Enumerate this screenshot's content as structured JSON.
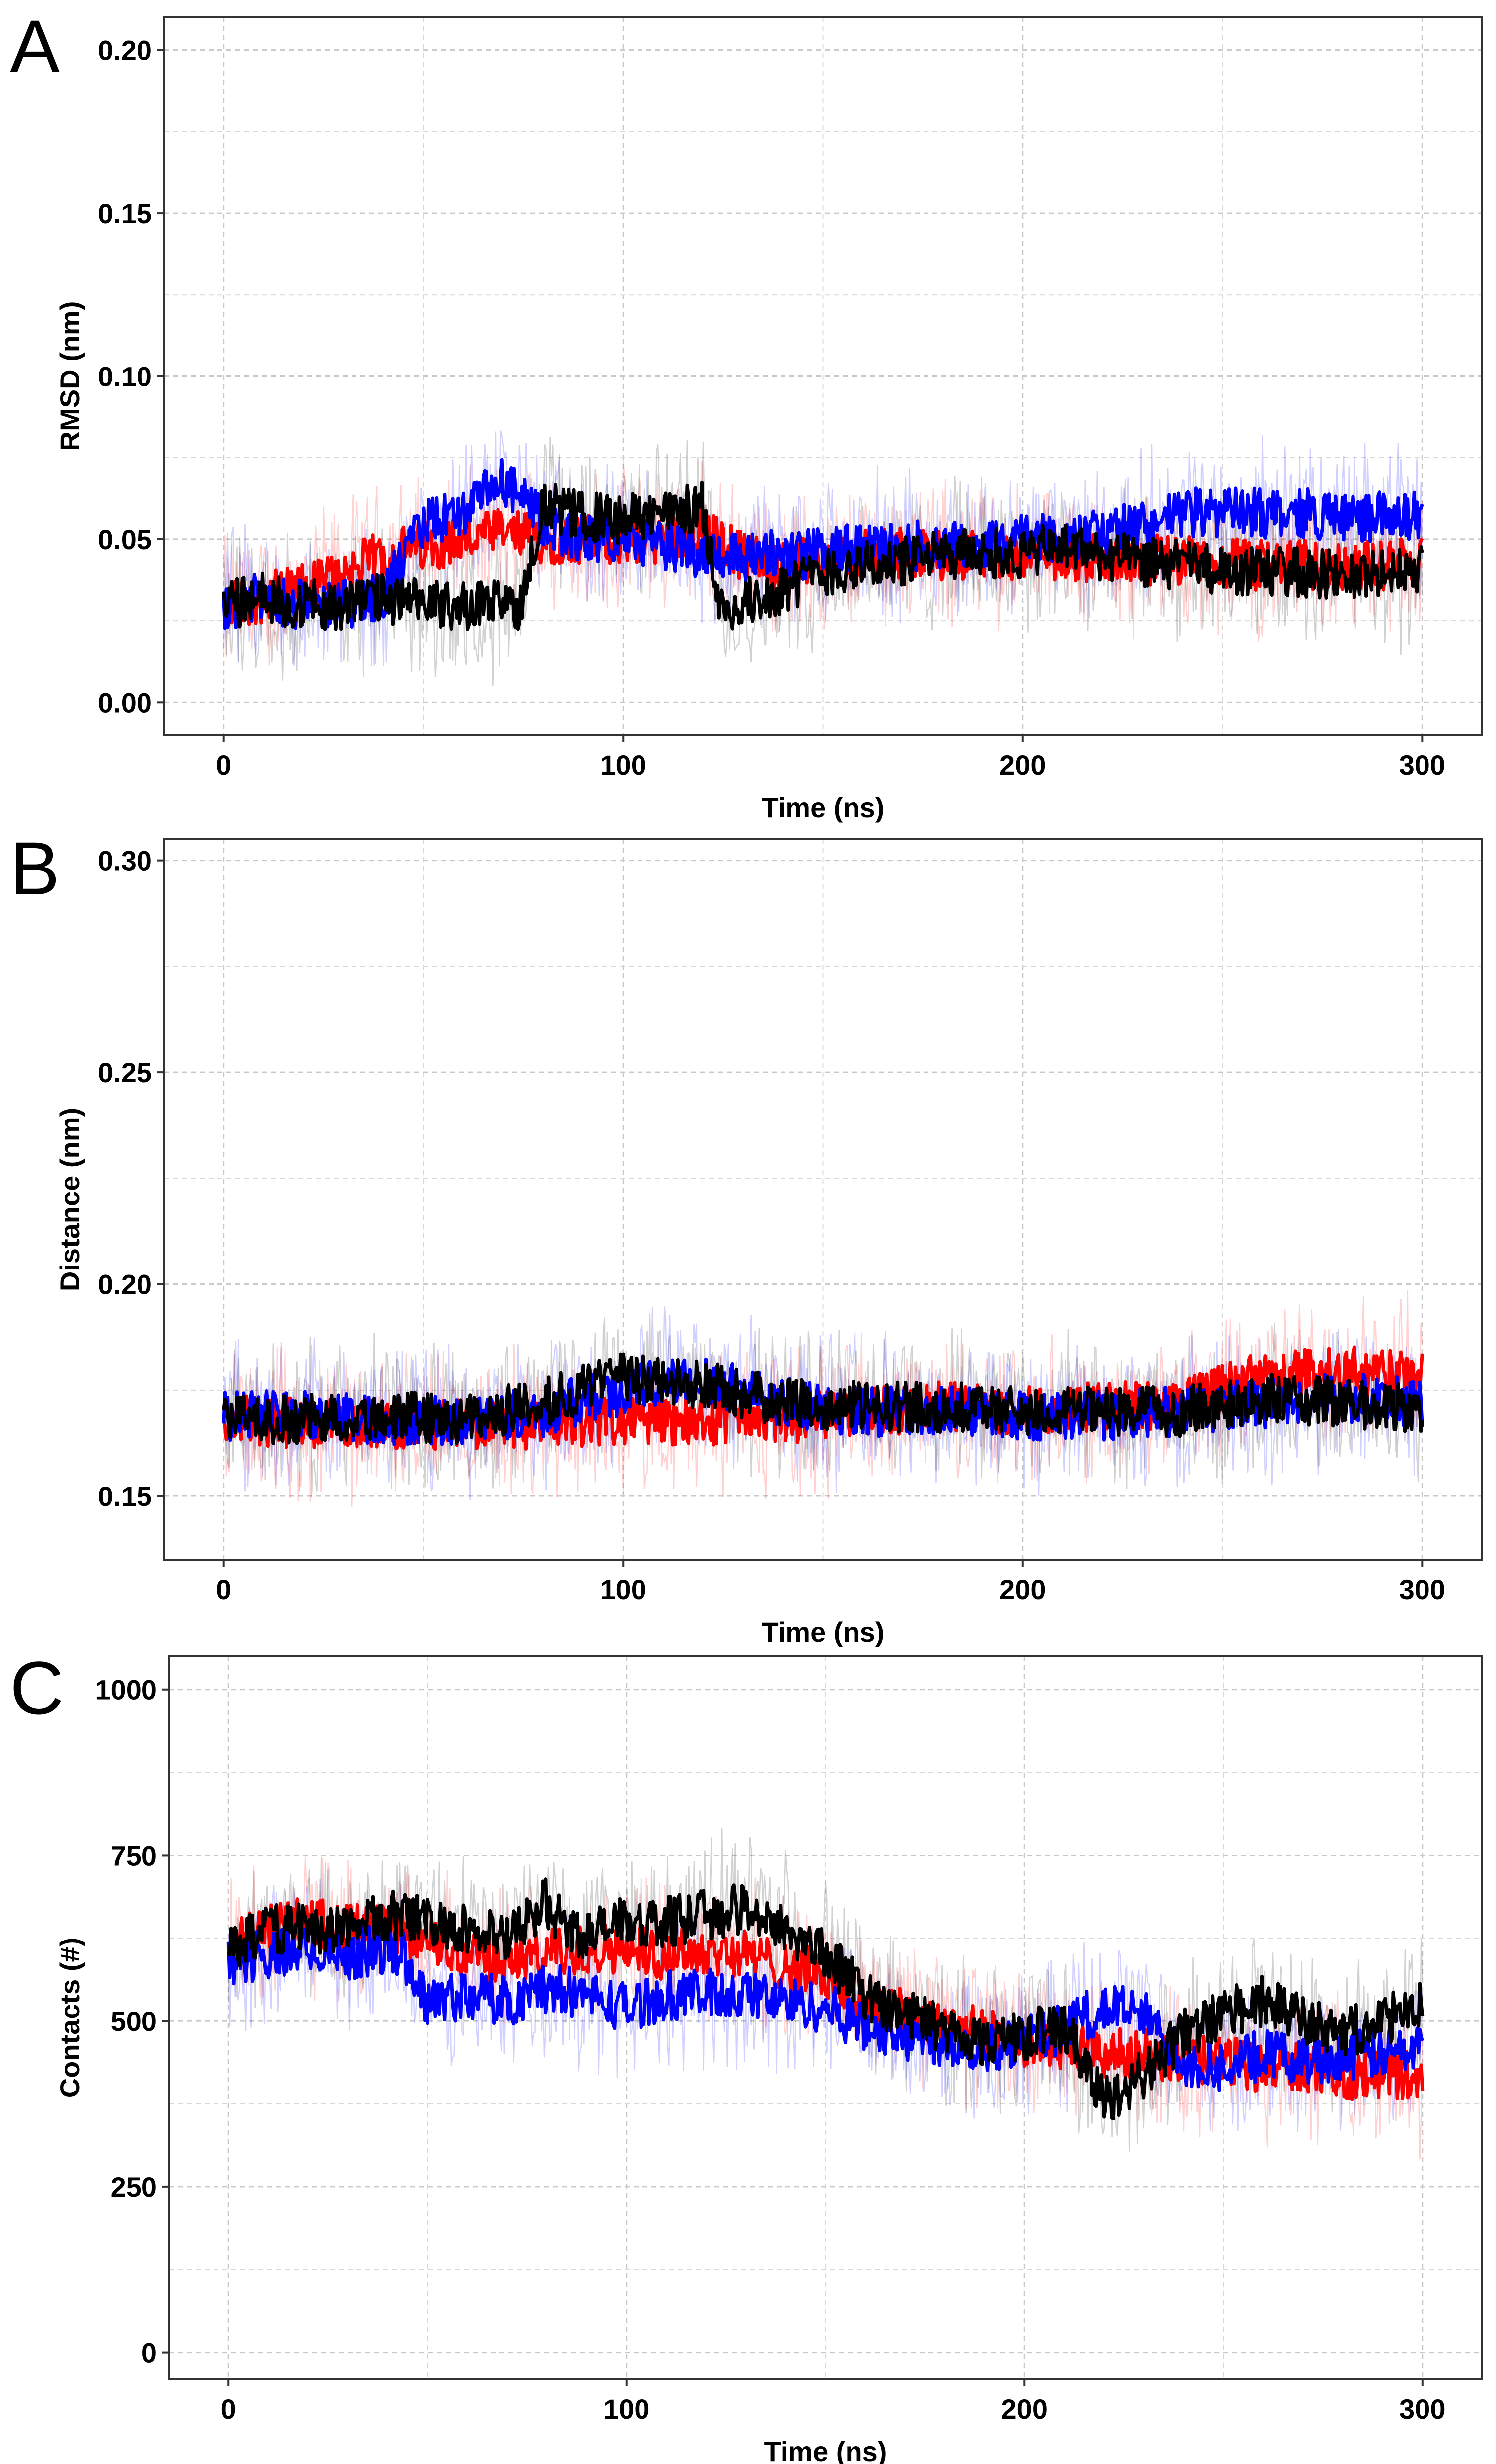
{
  "chart_data": [
    {
      "panel": "A",
      "type": "line",
      "xlabel": "Time (ns)",
      "ylabel": "RMSD (nm)",
      "xlim": [
        -15,
        315
      ],
      "ylim": [
        -0.01,
        0.21
      ],
      "xticks": [
        0,
        100,
        200,
        300
      ],
      "xtick_labels": [
        "0",
        "100",
        "200",
        "300"
      ],
      "yticks": [
        0.0,
        0.05,
        0.1,
        0.15,
        0.2
      ],
      "ytick_labels": [
        "0.00",
        "0.05",
        "0.10",
        "0.15",
        "0.20"
      ],
      "grid": true,
      "legend": "none",
      "series": [
        {
          "color": "#ff0000",
          "x": [
            0,
            10,
            20,
            30,
            40,
            50,
            60,
            70,
            80,
            90,
            100,
            110,
            120,
            130,
            140,
            150,
            160,
            170,
            180,
            190,
            200,
            210,
            220,
            230,
            240,
            250,
            260,
            270,
            280,
            290,
            300
          ],
          "values": [
            0.03,
            0.032,
            0.035,
            0.04,
            0.045,
            0.048,
            0.05,
            0.052,
            0.05,
            0.05,
            0.05,
            0.05,
            0.052,
            0.045,
            0.042,
            0.043,
            0.045,
            0.046,
            0.045,
            0.046,
            0.045,
            0.045,
            0.044,
            0.044,
            0.043,
            0.043,
            0.042,
            0.042,
            0.042,
            0.042,
            0.043
          ]
        },
        {
          "color": "#0000ff",
          "x": [
            0,
            10,
            20,
            30,
            40,
            50,
            60,
            70,
            80,
            90,
            100,
            110,
            120,
            130,
            140,
            150,
            160,
            170,
            180,
            190,
            200,
            210,
            220,
            230,
            240,
            250,
            260,
            270,
            280,
            290,
            300
          ],
          "values": [
            0.03,
            0.032,
            0.03,
            0.03,
            0.033,
            0.055,
            0.058,
            0.068,
            0.055,
            0.05,
            0.05,
            0.048,
            0.046,
            0.045,
            0.045,
            0.046,
            0.047,
            0.048,
            0.048,
            0.049,
            0.05,
            0.05,
            0.052,
            0.054,
            0.058,
            0.058,
            0.058,
            0.058,
            0.057,
            0.057,
            0.057
          ]
        },
        {
          "color": "#000000",
          "x": [
            0,
            10,
            20,
            30,
            40,
            50,
            60,
            70,
            74,
            80,
            90,
            100,
            110,
            120,
            124,
            130,
            140,
            150,
            160,
            170,
            180,
            190,
            200,
            210,
            220,
            230,
            240,
            250,
            260,
            270,
            280,
            290,
            300
          ],
          "values": [
            0.03,
            0.032,
            0.03,
            0.03,
            0.032,
            0.03,
            0.03,
            0.03,
            0.03,
            0.06,
            0.057,
            0.056,
            0.058,
            0.06,
            0.028,
            0.03,
            0.035,
            0.04,
            0.042,
            0.043,
            0.045,
            0.046,
            0.045,
            0.048,
            0.045,
            0.043,
            0.042,
            0.04,
            0.04,
            0.04,
            0.039,
            0.039,
            0.04
          ]
        }
      ]
    },
    {
      "panel": "B",
      "type": "line",
      "xlabel": "Time (ns)",
      "ylabel": "Distance (nm)",
      "xlim": [
        -15,
        315
      ],
      "ylim": [
        0.135,
        0.305
      ],
      "xticks": [
        0,
        100,
        200,
        300
      ],
      "xtick_labels": [
        "0",
        "100",
        "200",
        "300"
      ],
      "yticks": [
        0.15,
        0.2,
        0.25,
        0.3
      ],
      "ytick_labels": [
        "0.15",
        "0.20",
        "0.25",
        "0.30"
      ],
      "grid": true,
      "legend": "none",
      "series": [
        {
          "color": "#ff0000",
          "x": [
            0,
            20,
            40,
            60,
            80,
            100,
            120,
            140,
            160,
            180,
            200,
            220,
            240,
            260,
            280,
            300
          ],
          "values": [
            0.168,
            0.167,
            0.167,
            0.167,
            0.167,
            0.168,
            0.168,
            0.168,
            0.17,
            0.171,
            0.17,
            0.171,
            0.172,
            0.178,
            0.18,
            0.178
          ]
        },
        {
          "color": "#0000ff",
          "x": [
            0,
            20,
            40,
            60,
            80,
            100,
            120,
            140,
            160,
            180,
            200,
            220,
            240,
            260,
            280,
            300
          ],
          "values": [
            0.169,
            0.169,
            0.168,
            0.168,
            0.17,
            0.175,
            0.178,
            0.172,
            0.17,
            0.17,
            0.169,
            0.169,
            0.17,
            0.172,
            0.173,
            0.172
          ]
        },
        {
          "color": "#000000",
          "x": [
            0,
            20,
            40,
            60,
            80,
            100,
            120,
            140,
            160,
            180,
            200,
            220,
            240,
            260,
            280,
            300
          ],
          "values": [
            0.168,
            0.168,
            0.169,
            0.168,
            0.172,
            0.178,
            0.176,
            0.172,
            0.171,
            0.171,
            0.17,
            0.17,
            0.17,
            0.173,
            0.172,
            0.17
          ]
        }
      ]
    },
    {
      "panel": "C",
      "type": "line",
      "xlabel": "Time (ns)",
      "ylabel": "Contacts (#)",
      "xlim": [
        -15,
        315
      ],
      "ylim": [
        -40,
        1050
      ],
      "xticks": [
        0,
        100,
        200,
        300
      ],
      "xtick_labels": [
        "0",
        "100",
        "200",
        "300"
      ],
      "yticks": [
        0,
        250,
        500,
        750,
        1000
      ],
      "ytick_labels": [
        "0",
        "250",
        "500",
        "750",
        "1000"
      ],
      "grid": true,
      "legend": "none",
      "series": [
        {
          "color": "#ff0000",
          "x": [
            0,
            10,
            20,
            30,
            40,
            50,
            60,
            70,
            80,
            90,
            100,
            110,
            120,
            130,
            140,
            150,
            160,
            170,
            180,
            190,
            200,
            210,
            220,
            230,
            240,
            250,
            260,
            270,
            280,
            290,
            300
          ],
          "values": [
            610,
            640,
            650,
            640,
            640,
            620,
            600,
            590,
            600,
            610,
            610,
            600,
            610,
            600,
            580,
            570,
            530,
            510,
            500,
            480,
            470,
            460,
            450,
            450,
            440,
            440,
            430,
            430,
            420,
            420,
            420
          ]
        },
        {
          "color": "#0000ff",
          "x": [
            0,
            10,
            20,
            30,
            40,
            44,
            50,
            60,
            70,
            80,
            90,
            100,
            110,
            120,
            130,
            140,
            150,
            160,
            170,
            180,
            190,
            200,
            210,
            220,
            230,
            240,
            250,
            260,
            270,
            280,
            290,
            300
          ],
          "values": [
            590,
            600,
            610,
            600,
            610,
            600,
            530,
            540,
            530,
            550,
            540,
            520,
            540,
            540,
            540,
            530,
            520,
            490,
            480,
            470,
            460,
            470,
            490,
            520,
            510,
            440,
            430,
            450,
            440,
            450,
            450,
            460
          ]
        },
        {
          "color": "#000000",
          "x": [
            0,
            10,
            20,
            30,
            40,
            50,
            60,
            70,
            80,
            85,
            90,
            100,
            110,
            120,
            130,
            140,
            150,
            160,
            170,
            180,
            190,
            200,
            210,
            220,
            230,
            240,
            250,
            260,
            270,
            280,
            290,
            300
          ],
          "values": [
            610,
            640,
            640,
            640,
            660,
            650,
            640,
            620,
            680,
            640,
            630,
            650,
            650,
            660,
            670,
            640,
            600,
            540,
            510,
            490,
            470,
            480,
            490,
            380,
            420,
            480,
            510,
            530,
            500,
            480,
            500,
            520
          ]
        }
      ]
    }
  ]
}
